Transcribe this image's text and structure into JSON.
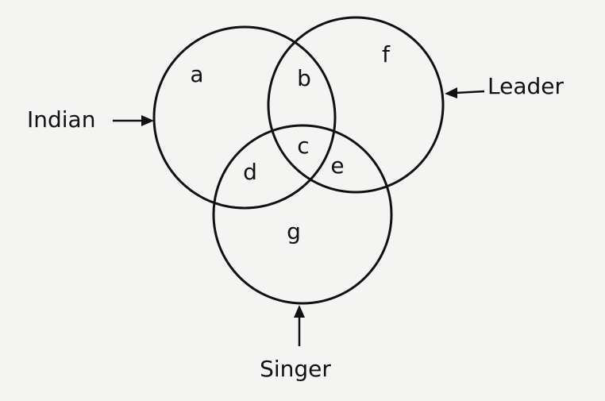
{
  "sets": {
    "indian": "Indian",
    "leader": "Leader",
    "singer": "Singer"
  },
  "regions": {
    "a": "a",
    "b": "b",
    "c": "c",
    "d": "d",
    "e": "e",
    "f": "f",
    "g": "g"
  },
  "colors": {
    "ink": "#111111",
    "paper": "#f4f4f2"
  }
}
